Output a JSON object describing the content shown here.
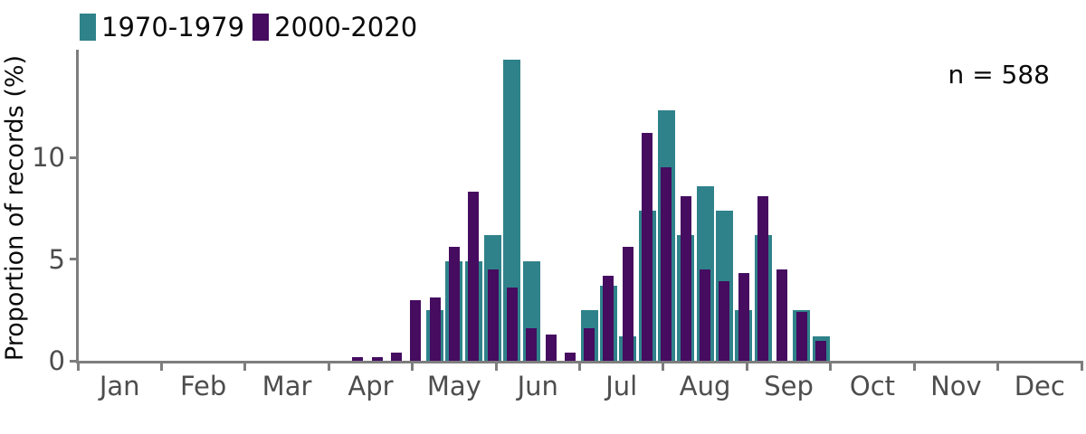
{
  "chart_data": {
    "type": "bar",
    "title": "",
    "ylabel": "Proportion of records (%)",
    "annotation": "n = 588",
    "legend_position": "top-left",
    "grid": false,
    "x_axis": {
      "unit": "week of year",
      "bins": 52,
      "month_labels": [
        "Jan",
        "Feb",
        "Mar",
        "Apr",
        "May",
        "Jun",
        "Jul",
        "Aug",
        "Sep",
        "Oct",
        "Nov",
        "Dec"
      ]
    },
    "y_axis": {
      "ticks": [
        0,
        5,
        10
      ],
      "min": 0,
      "max": 14.9
    },
    "weeks": [
      15,
      16,
      17,
      18,
      19,
      20,
      21,
      22,
      23,
      24,
      25,
      26,
      27,
      28,
      29,
      30,
      31,
      32,
      33,
      34,
      35,
      36,
      37,
      38,
      39
    ],
    "series": [
      {
        "name": "1970-1979",
        "color": "#2f828a",
        "values": [
          0,
          0,
          0,
          0,
          2.5,
          4.9,
          4.9,
          6.2,
          14.8,
          4.9,
          0,
          0,
          2.5,
          3.7,
          1.2,
          7.4,
          12.3,
          6.2,
          8.6,
          7.4,
          2.5,
          6.2,
          0,
          2.5,
          1.2
        ]
      },
      {
        "name": "2000-2020",
        "color": "#450c60",
        "values": [
          0.2,
          0.2,
          0.4,
          3.0,
          3.1,
          5.6,
          8.3,
          4.5,
          3.6,
          1.6,
          1.3,
          0.4,
          1.6,
          4.2,
          5.6,
          11.2,
          9.5,
          8.1,
          4.5,
          3.9,
          4.3,
          8.1,
          4.5,
          2.4,
          1.0
        ]
      }
    ]
  }
}
